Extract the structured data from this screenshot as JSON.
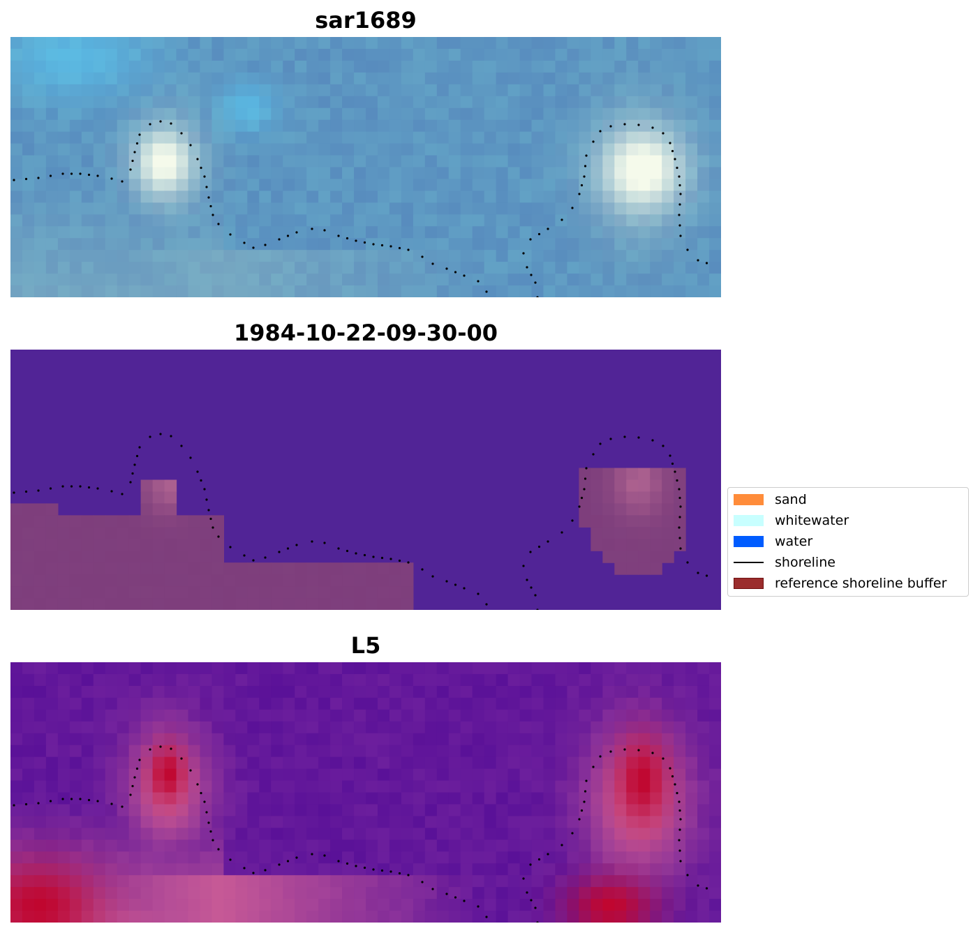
{
  "panels": [
    {
      "title": "sar1689",
      "kind": "rgb"
    },
    {
      "title": "1984-10-22-09-30-00",
      "kind": "classified"
    },
    {
      "title": "L5",
      "kind": "index"
    }
  ],
  "legend": {
    "items": [
      {
        "label": "sand",
        "type": "patch",
        "color": "#ff8c3a"
      },
      {
        "label": "whitewater",
        "type": "patch",
        "color": "#c8ffff"
      },
      {
        "label": "water",
        "type": "patch",
        "color": "#005cff"
      },
      {
        "label": "shoreline",
        "type": "line",
        "color": "#000000"
      },
      {
        "label": "reference shoreline buffer",
        "type": "patch",
        "color": "#9b2d2d"
      }
    ]
  },
  "colors": {
    "rgb_base": "#5f8fbf",
    "classified_water": "#512496",
    "classified_buffer": "#7e3e7c",
    "index_low": "#5a1198",
    "index_high": "#c0062f"
  }
}
